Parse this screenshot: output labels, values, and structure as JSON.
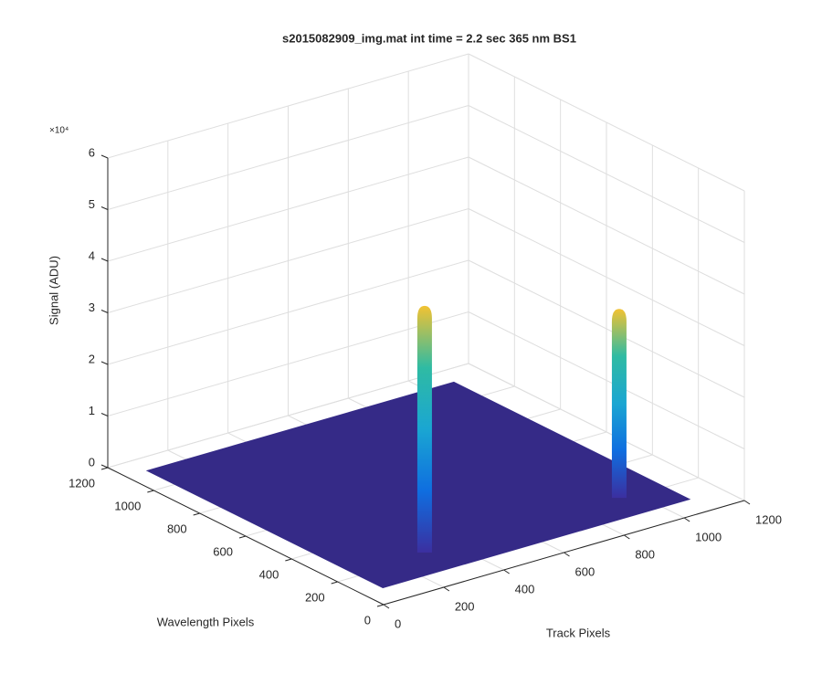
{
  "chart_data": {
    "type": "surface3d",
    "title": "s2015082909_img.mat int time = 2.2 sec  365 nm BS1",
    "xlabel": "Track Pixels",
    "ylabel": "Wavelength Pixels",
    "zlabel": "Signal (ADU)",
    "z_multiplier": "×10⁴",
    "xlim": [
      0,
      1200
    ],
    "ylim": [
      0,
      1200
    ],
    "zlim": [
      0,
      60000
    ],
    "xticks": [
      0,
      200,
      400,
      600,
      800,
      1000,
      1200
    ],
    "yticks": [
      0,
      200,
      400,
      600,
      800,
      1000,
      1200
    ],
    "zticks": [
      0,
      {
        "value": 10000,
        "label": "1"
      },
      {
        "value": 20000,
        "label": "2"
      },
      {
        "value": 30000,
        "label": "3"
      },
      {
        "value": 40000,
        "label": "4"
      },
      {
        "value": 50000,
        "label": "5"
      },
      {
        "value": 60000,
        "label": "6"
      }
    ],
    "grid": true,
    "surface": {
      "x_extent": [
        70,
        1090
      ],
      "y_extent": [
        95,
        1120
      ],
      "z": 0,
      "color": "#352a87"
    },
    "peaks": [
      {
        "x": 307,
        "y": 223,
        "z": 47800
      },
      {
        "x": 948,
        "y": 215,
        "z": 36600
      }
    ],
    "colormap": [
      "#3b2fa0",
      "#0f6ee0",
      "#1aa6d2",
      "#2fbba3",
      "#f2c232"
    ]
  }
}
